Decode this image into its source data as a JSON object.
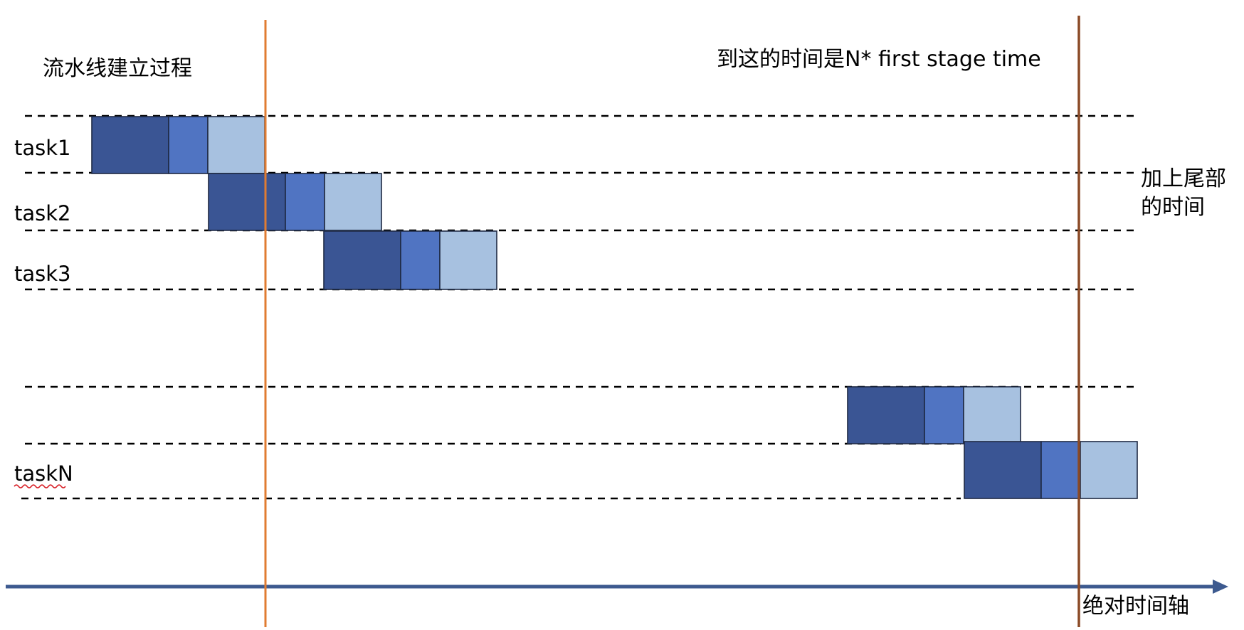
{
  "diagram": {
    "title": "流水线建立过程",
    "top_note": "到这的时间是N* first stage time",
    "tail_note_line1": "加上尾部",
    "tail_note_line2": "的时间",
    "axis_label": "绝对时间轴",
    "task_labels": [
      "task1",
      "task2",
      "task3",
      "taskN"
    ],
    "colors": {
      "stage1": "#3a5594",
      "stage2": "#5074c2",
      "stage3": "#a7c1e0",
      "axis": "#3d5a8f",
      "setup_line": "#e07c32",
      "end_line": "#8b4a26"
    }
  }
}
